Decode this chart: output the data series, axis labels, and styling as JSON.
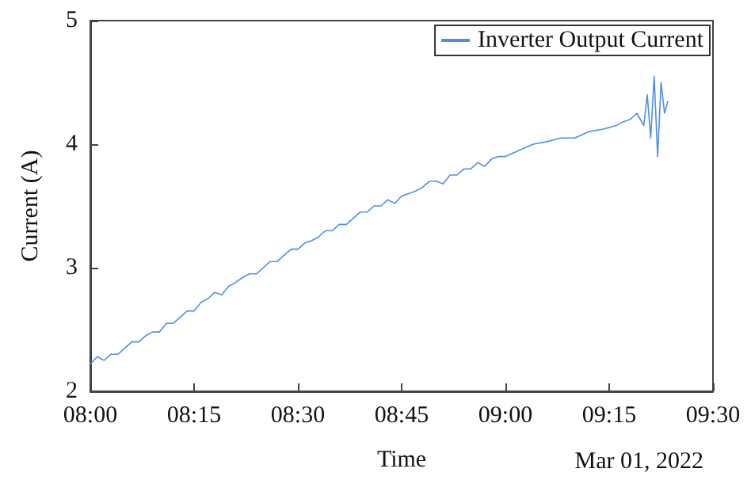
{
  "chart_data": {
    "type": "line",
    "xlabel": "Time",
    "ylabel": "Current (A)",
    "annotations": [
      "Mar 01, 2022"
    ],
    "x": [
      8,
      8.0167,
      8.0333,
      8.05,
      8.0667,
      8.0833,
      8.1,
      8.1167,
      8.1333,
      8.15,
      8.1667,
      8.1833,
      8.2,
      8.2167,
      8.2333,
      8.25,
      8.2667,
      8.2833,
      8.3,
      8.3167,
      8.3333,
      8.35,
      8.3667,
      8.3833,
      8.4,
      8.4167,
      8.4333,
      8.45,
      8.4667,
      8.4833,
      8.5,
      8.5167,
      8.5333,
      8.55,
      8.5667,
      8.5833,
      8.6,
      8.6167,
      8.6333,
      8.65,
      8.6667,
      8.6833,
      8.7,
      8.7167,
      8.7333,
      8.75,
      8.7667,
      8.7833,
      8.8,
      8.8167,
      8.8333,
      8.85,
      8.8667,
      8.8833,
      8.9,
      8.9167,
      8.9333,
      8.95,
      8.9667,
      8.9833,
      9,
      9.0333,
      9.0667,
      9.1,
      9.1333,
      9.1667,
      9.2,
      9.2333,
      9.2667,
      9.2833,
      9.3,
      9.3167,
      9.3333,
      9.3417,
      9.35,
      9.3583,
      9.3667,
      9.375,
      9.3833,
      9.3917
    ],
    "series": [
      {
        "name": "Inverter Output Current",
        "color": "#4d8fe8",
        "values": [
          2.22,
          2.28,
          2.25,
          2.3,
          2.3,
          2.35,
          2.4,
          2.4,
          2.45,
          2.48,
          2.48,
          2.55,
          2.55,
          2.6,
          2.65,
          2.65,
          2.72,
          2.75,
          2.8,
          2.78,
          2.85,
          2.88,
          2.92,
          2.95,
          2.95,
          3,
          3.05,
          3.05,
          3.1,
          3.15,
          3.15,
          3.2,
          3.22,
          3.25,
          3.3,
          3.3,
          3.35,
          3.35,
          3.4,
          3.45,
          3.45,
          3.5,
          3.5,
          3.55,
          3.52,
          3.58,
          3.6,
          3.62,
          3.65,
          3.7,
          3.7,
          3.68,
          3.75,
          3.75,
          3.8,
          3.8,
          3.85,
          3.82,
          3.88,
          3.9,
          3.9,
          3.95,
          4,
          4.02,
          4.05,
          4.05,
          4.1,
          4.12,
          4.15,
          4.18,
          4.2,
          4.25,
          4.15,
          4.4,
          4.05,
          4.55,
          3.9,
          4.5,
          4.25,
          4.35
        ]
      }
    ],
    "xlim": [
      8,
      9.5
    ],
    "xticks": [
      {
        "value": 8,
        "label": "08:00"
      },
      {
        "value": 8.25,
        "label": "08:15"
      },
      {
        "value": 8.5,
        "label": "08:30"
      },
      {
        "value": 8.75,
        "label": "08:45"
      },
      {
        "value": 9,
        "label": "09:00"
      },
      {
        "value": 9.25,
        "label": "09:15"
      },
      {
        "value": 9.5,
        "label": "09:30"
      }
    ],
    "ylim": [
      2,
      5
    ],
    "yticks": [
      2,
      3,
      4,
      5
    ],
    "grid": false,
    "legend": "top right",
    "marker": "none",
    "line_style": "solid"
  }
}
